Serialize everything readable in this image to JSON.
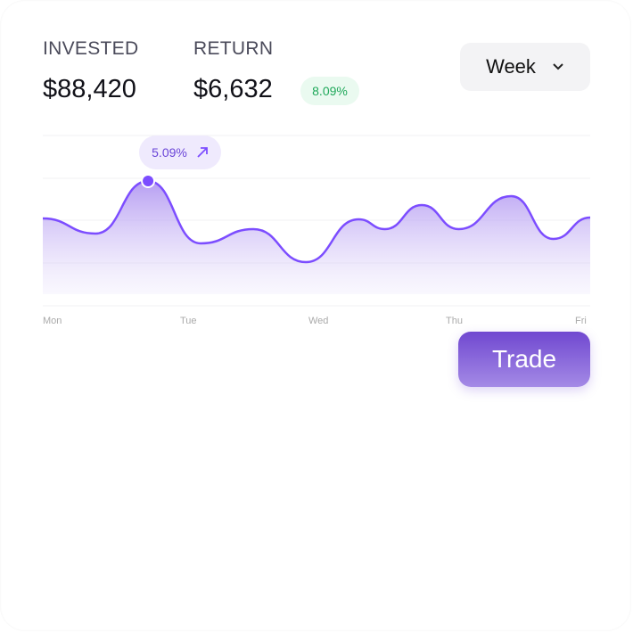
{
  "header": {
    "invested_label": "INVESTED",
    "invested_value": "$88,420",
    "return_label": "RETURN",
    "return_value": "$6,632",
    "return_badge": "8.09%"
  },
  "period_select": {
    "selected": "Week"
  },
  "tooltip": {
    "text": "5.09%",
    "icon": "arrow-up-right-icon"
  },
  "trade_button": "Trade",
  "colors": {
    "accent": "#7c4dff",
    "positive": "#1fa85a"
  },
  "chart_data": {
    "type": "area",
    "categories": [
      "Mon",
      "Tue",
      "Wed",
      "Thu",
      "Fri"
    ],
    "x": [
      0,
      0.5,
      1,
      1.5,
      2,
      2.5,
      3,
      3.25,
      3.6,
      3.95,
      4.45,
      4.85,
      5.2
    ],
    "values": [
      85,
      68,
      127,
      57,
      73,
      36,
      84,
      73,
      100,
      73,
      110,
      62,
      86
    ],
    "highlight_index": 2,
    "grid": true,
    "ylim": [
      0,
      180
    ]
  }
}
